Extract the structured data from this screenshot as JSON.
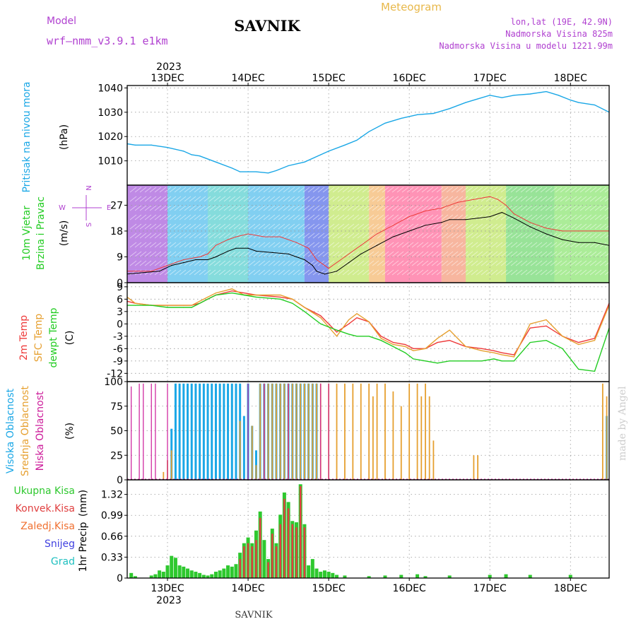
{
  "header": {
    "model_label": "Model",
    "model_name": "wrf—nmm_v3.9.1 e1km",
    "station": "SAVNIK",
    "product": "Meteogram",
    "coords": "lon,lat (19E, 42.9N)",
    "elevation": "Nadmorska Visina 825m",
    "model_elevation": "Nadmorska Visina u modelu 1221.99m",
    "footer_station": "SAVNIK",
    "credit": "made by Angel"
  },
  "colors": {
    "pressure": "#1aa7e6",
    "t2m": "#ee3a3a",
    "sfc": "#e6a030",
    "dewpt": "#22cc22",
    "cloud_high": "#1aa7e6",
    "cloud_mid": "#e6a030",
    "cloud_low": "#cc1a99",
    "precip_total": "#2ec82e",
    "precip_conv": "#e04040",
    "header_purple": "#b040d0",
    "header_gold": "#e8b84a"
  },
  "x_axis": {
    "year_top": "2023",
    "year_bottom": "2023",
    "days": [
      "13DEC",
      "14DEC",
      "15DEC",
      "16DEC",
      "17DEC",
      "18DEC"
    ],
    "day_positions": [
      0.5,
      1.5,
      2.5,
      3.5,
      4.5,
      5.5
    ],
    "range": [
      0,
      5.98
    ]
  },
  "chart_data": [
    {
      "type": "line",
      "panel": "pressure",
      "ylabel_main": "Pritisak na nivou mora",
      "ylabel_unit": "(hPa)",
      "ylim": [
        1000,
        1041
      ],
      "yticks": [
        1010,
        1020,
        1030,
        1040
      ],
      "series": [
        {
          "x": [
            0,
            0.1,
            0.3,
            0.5,
            0.7,
            0.8,
            0.9,
            1.1,
            1.3,
            1.4,
            1.5,
            1.6,
            1.75,
            1.85,
            2.0,
            2.2,
            2.4,
            2.5,
            2.7,
            2.85,
            3.0,
            3.2,
            3.4,
            3.6,
            3.8,
            4.0,
            4.2,
            4.35,
            4.5,
            4.65,
            4.8,
            5.0,
            5.2,
            5.35,
            5.5,
            5.6,
            5.8,
            5.98
          ],
          "values": [
            1017,
            1016.5,
            1016.5,
            1015.5,
            1014,
            1012.5,
            1012,
            1009.5,
            1007,
            1005.5,
            1005.5,
            1005.5,
            1005,
            1006,
            1008,
            1009.5,
            1012.5,
            1014,
            1016.5,
            1018.5,
            1022,
            1025.5,
            1027.5,
            1029,
            1029.5,
            1031.5,
            1034,
            1035.5,
            1037,
            1036,
            1037,
            1037.5,
            1038.5,
            1037,
            1035,
            1034,
            1033,
            1030
          ]
        }
      ]
    },
    {
      "type": "line",
      "panel": "wind",
      "ylabel_main": "10m Vjetar",
      "ylabel_main2": "Brzina i Pravac",
      "ylabel_unit": "(m/s)",
      "compass": {
        "n": "N",
        "s": "S",
        "e": "E",
        "w": "W"
      },
      "ylim": [
        0,
        34
      ],
      "yticks": [
        0,
        9,
        18,
        27
      ],
      "series": [
        {
          "name": "speed",
          "x": [
            0,
            0.2,
            0.4,
            0.55,
            0.7,
            0.85,
            1.0,
            1.1,
            1.25,
            1.35,
            1.5,
            1.6,
            1.8,
            2.0,
            2.1,
            2.2,
            2.3,
            2.35,
            2.45,
            2.6,
            2.75,
            2.9,
            3.1,
            3.3,
            3.5,
            3.7,
            3.9,
            4.0,
            4.2,
            4.35,
            4.5,
            4.65,
            4.8,
            5.0,
            5.2,
            5.4,
            5.6,
            5.8,
            5.98
          ],
          "values": [
            3,
            3.5,
            4,
            6,
            7,
            8,
            8,
            9,
            11,
            12,
            12,
            11,
            10.5,
            10,
            9,
            8,
            6,
            4,
            3,
            4,
            7,
            10,
            13,
            16,
            18,
            20,
            21,
            22,
            22,
            22.5,
            23,
            24.5,
            22.5,
            19.5,
            17,
            15,
            14,
            14,
            13
          ]
        },
        {
          "name": "gust",
          "x": [
            0,
            0.3,
            0.5,
            0.7,
            0.9,
            1.0,
            1.1,
            1.25,
            1.35,
            1.5,
            1.7,
            1.9,
            2.1,
            2.25,
            2.35,
            2.5,
            2.7,
            2.9,
            3.1,
            3.3,
            3.5,
            3.7,
            3.9,
            4.1,
            4.3,
            4.5,
            4.6,
            4.7,
            4.8,
            5.0,
            5.2,
            5.4,
            5.6,
            5.8,
            5.98
          ],
          "values": [
            4,
            4,
            6,
            8,
            9,
            10,
            13,
            15,
            16,
            17,
            16,
            16,
            14,
            12,
            8,
            5,
            9,
            13,
            17,
            20,
            23,
            25,
            26,
            28,
            29,
            30,
            29,
            27,
            24,
            21,
            19,
            18,
            18,
            18,
            18
          ]
        }
      ]
    },
    {
      "type": "line",
      "panel": "temperature",
      "ylabel_main": "2m Temp",
      "ylabel_main2": "SFC Temp",
      "ylabel_main3": "dewpt Temp",
      "ylabel_unit": "(C)",
      "ylim": [
        -14,
        10
      ],
      "yticks": [
        -12,
        -9,
        -6,
        -3,
        0,
        3,
        6,
        9
      ],
      "series": [
        {
          "name": "2m Temp",
          "x": [
            0,
            0.1,
            0.3,
            0.5,
            0.7,
            0.8,
            0.9,
            1.0,
            1.1,
            1.3,
            1.45,
            1.6,
            1.9,
            2.05,
            2.2,
            2.4,
            2.6,
            2.75,
            2.85,
            3.0,
            3.15,
            3.3,
            3.45,
            3.55,
            3.7,
            3.85,
            4.0,
            4.2,
            4.4,
            4.55,
            4.65,
            4.8,
            5.0,
            5.2,
            5.4,
            5.6,
            5.8,
            5.98
          ],
          "values": [
            5.5,
            5,
            4.5,
            4.5,
            4.5,
            4.5,
            5,
            6,
            7,
            8,
            7.5,
            7,
            6.5,
            6,
            4,
            2,
            -2,
            0,
            1.5,
            0.5,
            -3,
            -4.5,
            -5,
            -6,
            -6,
            -4.5,
            -4,
            -5.5,
            -6,
            -6.5,
            -7,
            -7.5,
            -1,
            -0.5,
            -3,
            -4.5,
            -3.5,
            5
          ]
        },
        {
          "name": "SFC Temp",
          "x": [
            0,
            0.1,
            0.3,
            0.5,
            0.7,
            0.8,
            0.9,
            1.0,
            1.1,
            1.3,
            1.45,
            1.6,
            1.9,
            2.05,
            2.2,
            2.4,
            2.6,
            2.75,
            2.85,
            3.0,
            3.15,
            3.3,
            3.45,
            3.55,
            3.7,
            3.85,
            4.0,
            4.2,
            4.4,
            4.55,
            4.65,
            4.8,
            5.0,
            5.2,
            5.4,
            5.6,
            5.8,
            5.98
          ],
          "values": [
            6.5,
            5,
            4.5,
            4.5,
            4.5,
            4.5,
            5.5,
            6.5,
            7.5,
            8.5,
            7,
            7,
            7,
            6,
            4,
            1.5,
            -3,
            1,
            2.5,
            0.5,
            -3.5,
            -5,
            -5.5,
            -6.5,
            -6,
            -3.5,
            -1.5,
            -5.5,
            -6.5,
            -7,
            -7.5,
            -8,
            0,
            1,
            -3,
            -5,
            -4,
            4.5
          ]
        },
        {
          "name": "dewpt Temp",
          "x": [
            0,
            0.1,
            0.3,
            0.5,
            0.7,
            0.8,
            0.9,
            1.0,
            1.1,
            1.3,
            1.45,
            1.6,
            1.9,
            2.05,
            2.2,
            2.4,
            2.6,
            2.75,
            2.85,
            3.0,
            3.15,
            3.3,
            3.45,
            3.55,
            3.7,
            3.85,
            4.0,
            4.2,
            4.4,
            4.55,
            4.65,
            4.8,
            5.0,
            5.2,
            5.4,
            5.6,
            5.8,
            5.98
          ],
          "values": [
            4.5,
            4.5,
            4.5,
            4,
            4,
            4,
            5,
            6,
            7,
            7.5,
            7,
            6.5,
            6,
            5,
            3,
            0,
            -1.5,
            -2.5,
            -3,
            -3,
            -4,
            -5.5,
            -7,
            -8.5,
            -9,
            -9.5,
            -9,
            -9,
            -9,
            -8.5,
            -9,
            -9,
            -4.5,
            -4,
            -6,
            -11,
            -11.5,
            -1
          ]
        }
      ]
    },
    {
      "type": "bar",
      "panel": "clouds",
      "ylabel_main": "Visoka Oblacnost",
      "ylabel_main2": "Srednja Oblacnost",
      "ylabel_main3": "Niska Oblacnost",
      "ylabel_unit": "(%)",
      "ylim": [
        0,
        100
      ],
      "yticks": [
        0,
        25,
        50,
        75,
        100
      ],
      "series": [
        {
          "name": "Visoka Oblacnost",
          "x": [
            0.55,
            0.6,
            0.65,
            0.7,
            0.75,
            0.8,
            0.85,
            0.9,
            0.95,
            1.0,
            1.05,
            1.1,
            1.15,
            1.2,
            1.25,
            1.3,
            1.35,
            1.4,
            1.45,
            1.5,
            1.55,
            1.6,
            1.65,
            1.7,
            1.75,
            1.8,
            1.85,
            1.9,
            1.95,
            2.0,
            2.05,
            2.1,
            2.15,
            2.2,
            2.25,
            2.3,
            2.35,
            5.95
          ],
          "values": [
            52,
            98,
            98,
            98,
            98,
            98,
            98,
            98,
            98,
            98,
            98,
            98,
            98,
            98,
            98,
            98,
            98,
            98,
            65,
            98,
            55,
            30,
            98,
            98,
            98,
            98,
            98,
            98,
            98,
            98,
            98,
            98,
            98,
            98,
            98,
            98,
            98,
            65
          ]
        },
        {
          "name": "Srednja Oblacnost",
          "x": [
            0.45,
            0.5,
            0.55,
            1.4,
            1.55,
            1.6,
            1.65,
            1.7,
            1.75,
            1.8,
            1.85,
            1.9,
            1.95,
            2.0,
            2.05,
            2.1,
            2.15,
            2.2,
            2.25,
            2.3,
            2.35,
            2.4,
            2.5,
            2.6,
            2.7,
            2.8,
            2.9,
            3.0,
            3.05,
            3.1,
            3.2,
            3.3,
            3.4,
            3.5,
            3.6,
            3.65,
            3.7,
            3.75,
            3.8,
            4.3,
            4.35,
            5.9,
            5.95
          ],
          "values": [
            8,
            20,
            30,
            60,
            55,
            15,
            98,
            98,
            98,
            98,
            98,
            98,
            98,
            98,
            98,
            98,
            98,
            98,
            98,
            98,
            98,
            98,
            98,
            98,
            98,
            98,
            98,
            98,
            85,
            98,
            98,
            90,
            75,
            98,
            98,
            85,
            98,
            85,
            40,
            25,
            25,
            98,
            85
          ]
        },
        {
          "name": "Niska Oblacnost",
          "x": [
            0.05,
            0.15,
            0.2,
            0.3,
            0.35,
            0.5,
            1.5,
            1.7,
            2.0,
            2.4,
            2.5
          ],
          "values": [
            95,
            98,
            98,
            98,
            98,
            98,
            98,
            98,
            98,
            98,
            98
          ]
        }
      ]
    },
    {
      "type": "bar",
      "panel": "precip",
      "ylabel_main": "1hr Precip",
      "ylabel_unit": "(mm)",
      "legend": [
        "Ukupna Kisa",
        "Konvek.Kisa",
        "Zaledj.Kisa",
        "Snijeg",
        "Grad"
      ],
      "ylim": [
        0,
        1.55
      ],
      "yticks": [
        0,
        0.33,
        0.66,
        0.99,
        1.32
      ],
      "series": [
        {
          "name": "Ukupna Kisa",
          "x": [
            0.05,
            0.1,
            0.3,
            0.35,
            0.4,
            0.45,
            0.5,
            0.55,
            0.6,
            0.65,
            0.7,
            0.75,
            0.8,
            0.85,
            0.9,
            0.95,
            1.0,
            1.05,
            1.1,
            1.15,
            1.2,
            1.25,
            1.3,
            1.35,
            1.4,
            1.45,
            1.5,
            1.55,
            1.6,
            1.65,
            1.7,
            1.75,
            1.8,
            1.85,
            1.9,
            1.95,
            2.0,
            2.05,
            2.1,
            2.15,
            2.2,
            2.25,
            2.3,
            2.35,
            2.4,
            2.45,
            2.5,
            2.55,
            2.6,
            2.7,
            3.0,
            3.2,
            3.4,
            3.6,
            3.7,
            4.0,
            4.5,
            4.7,
            5.0,
            5.5
          ],
          "values": [
            0.08,
            0.03,
            0.04,
            0.06,
            0.12,
            0.1,
            0.2,
            0.35,
            0.32,
            0.2,
            0.18,
            0.15,
            0.12,
            0.1,
            0.08,
            0.05,
            0.04,
            0.06,
            0.1,
            0.12,
            0.15,
            0.2,
            0.18,
            0.22,
            0.4,
            0.55,
            0.64,
            0.55,
            0.75,
            1.05,
            0.6,
            0.3,
            0.78,
            0.55,
            1.0,
            1.35,
            1.2,
            0.9,
            0.88,
            1.48,
            0.85,
            0.2,
            0.3,
            0.15,
            0.1,
            0.12,
            0.1,
            0.08,
            0.05,
            0.04,
            0.03,
            0.04,
            0.05,
            0.06,
            0.03,
            0.04,
            0.05,
            0.06,
            0.05,
            0.05
          ]
        },
        {
          "name": "Konvek.Kisa",
          "x": [
            1.4,
            1.45,
            1.5,
            1.55,
            1.6,
            1.65,
            1.75,
            1.8,
            1.85,
            1.9,
            1.95,
            2.0,
            2.05,
            2.1,
            2.15,
            2.2
          ],
          "values": [
            0.3,
            0.5,
            0.55,
            0.5,
            0.6,
            0.95,
            0.25,
            0.7,
            0.5,
            0.85,
            1.25,
            1.1,
            0.85,
            0.8,
            1.45,
            0.8
          ]
        }
      ]
    }
  ]
}
